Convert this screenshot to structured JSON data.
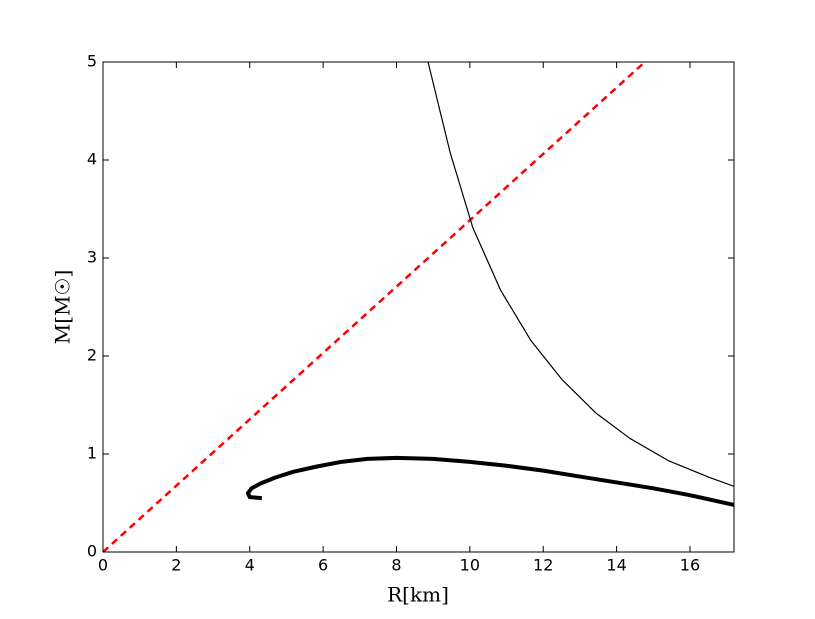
{
  "chart_data": {
    "type": "line",
    "xlabel": "R[km]",
    "ylabel": "M[M☉]",
    "xlim": [
      0,
      17.2
    ],
    "ylim": [
      0,
      5
    ],
    "xticks": [
      0,
      2,
      4,
      6,
      8,
      10,
      12,
      14,
      16
    ],
    "yticks": [
      0,
      1,
      2,
      3,
      4,
      5
    ],
    "series": [
      {
        "color": "#ff0000",
        "dash": true,
        "width": 2.5,
        "x": [
          0,
          14.77
        ],
        "values": [
          0,
          5
        ]
      },
      {
        "color": "#000000",
        "dash": false,
        "width": 1.2,
        "x": [
          8.86,
          9.46,
          10.08,
          10.84,
          11.66,
          12.51,
          13.43,
          14.36,
          15.42,
          16.54,
          17.2
        ],
        "values": [
          5,
          4.08,
          3.31,
          2.67,
          2.16,
          1.76,
          1.42,
          1.16,
          0.93,
          0.76,
          0.67
        ]
      },
      {
        "color": "#000000",
        "dash": false,
        "width": 4,
        "x": [
          4.33,
          4.0,
          3.95,
          4.05,
          4.3,
          4.7,
          5.2,
          5.8,
          6.5,
          7.2,
          8.0,
          9.0,
          10.0,
          11.0,
          12.0,
          13.0,
          14.0,
          15.0,
          16.0,
          17.2
        ],
        "values": [
          0.55,
          0.56,
          0.6,
          0.65,
          0.7,
          0.76,
          0.82,
          0.87,
          0.92,
          0.95,
          0.96,
          0.95,
          0.92,
          0.88,
          0.83,
          0.77,
          0.71,
          0.65,
          0.58,
          0.48
        ]
      }
    ]
  }
}
